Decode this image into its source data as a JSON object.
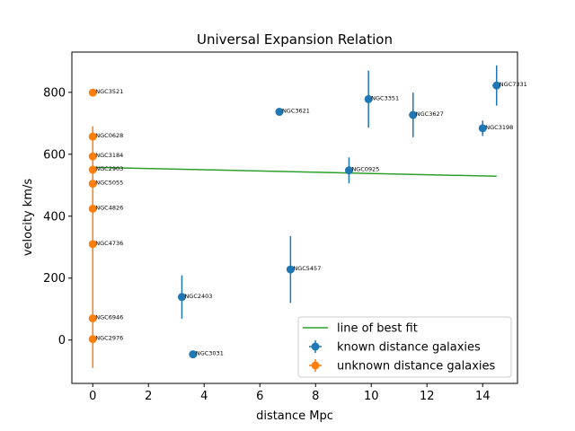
{
  "chart_data": {
    "type": "scatter",
    "title": "Universal Expansion Relation",
    "xlabel": "distance Mpc",
    "ylabel": "velocity km/s",
    "xlim": [
      -0.75,
      15.25
    ],
    "ylim": [
      -140,
      930
    ],
    "xticks": [
      0,
      2,
      4,
      6,
      8,
      10,
      12,
      14
    ],
    "yticks": [
      0,
      200,
      400,
      600,
      800
    ],
    "grid": false,
    "legend_position": "lower-right",
    "series": [
      {
        "name": "known distance galaxies",
        "color": "#1f77b4",
        "points": [
          {
            "label": "NGC2403",
            "x": 3.2,
            "y": 139,
            "yerr": 70,
            "xerr": 0.05
          },
          {
            "label": "NGC3031",
            "x": 3.6,
            "y": -46,
            "yerr": 0,
            "xerr": 0.08
          },
          {
            "label": "NGC3621",
            "x": 6.7,
            "y": 737,
            "yerr": 0,
            "xerr": 0.12
          },
          {
            "label": "NGC5457",
            "x": 7.1,
            "y": 228,
            "yerr": 108,
            "xerr": 0.05
          },
          {
            "label": "NGC0925",
            "x": 9.2,
            "y": 548,
            "yerr": 42,
            "xerr": 0.08
          },
          {
            "label": "NGC3351",
            "x": 9.9,
            "y": 778,
            "yerr": 92,
            "xerr": 0.05
          },
          {
            "label": "NGC3627",
            "x": 11.5,
            "y": 727,
            "yerr": 72,
            "xerr": 0.15
          },
          {
            "label": "NGC3198",
            "x": 14.0,
            "y": 684,
            "yerr": 25,
            "xerr": 0.05
          },
          {
            "label": "NGC7331",
            "x": 14.5,
            "y": 822,
            "yerr": 65,
            "xerr": 0.15
          }
        ]
      },
      {
        "name": "unknown distance galaxies",
        "color": "#ff7f0e",
        "points": [
          {
            "label": "NGC3521",
            "x": 0,
            "y": 799,
            "yerr": 0,
            "xerr": 0
          },
          {
            "label": "NGC0628",
            "x": 0,
            "y": 657,
            "yerr": 25,
            "xerr": 0
          },
          {
            "label": "NGC3184",
            "x": 0,
            "y": 593,
            "yerr": 0,
            "xerr": 0
          },
          {
            "label": "NGC2903",
            "x": 0,
            "y": 550,
            "yerr": 0,
            "xerr": 0
          },
          {
            "label": "NGC5055",
            "x": 0,
            "y": 505,
            "yerr": 0,
            "xerr": 0
          },
          {
            "label": "NGC4826",
            "x": 0,
            "y": 424,
            "yerr": 0,
            "xerr": 0
          },
          {
            "label": "NGC4736",
            "x": 0,
            "y": 310,
            "yerr": 100,
            "xerr": 0
          },
          {
            "label": "NGC6946",
            "x": 0,
            "y": 70,
            "yerr": 100,
            "xerr": 0
          },
          {
            "label": "NGC2976",
            "x": 0,
            "y": 3,
            "yerr": 90,
            "xerr": 0
          }
        ],
        "band": {
          "x": 0,
          "y_from": -90,
          "y_to": 690
        }
      }
    ],
    "fit_line": {
      "name": "line of best fit",
      "color": "#2ca02c",
      "x": [
        0,
        14.5
      ],
      "y": [
        558,
        529
      ]
    }
  }
}
